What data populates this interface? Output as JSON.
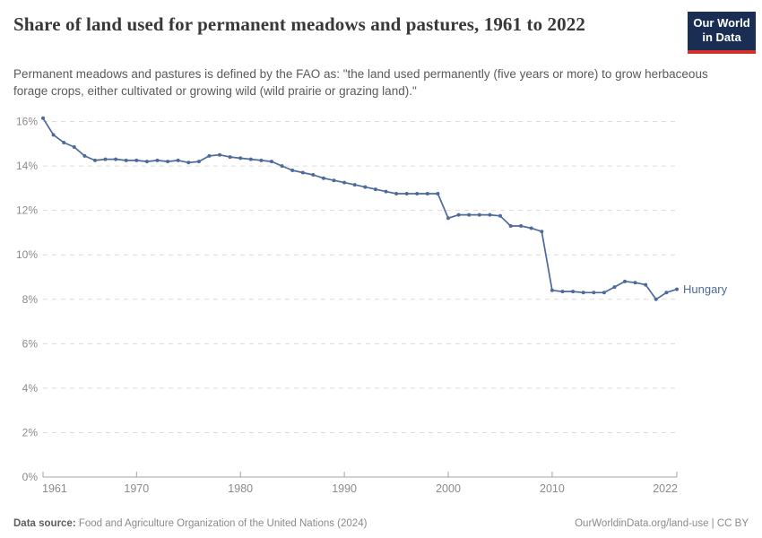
{
  "header": {
    "title": "Share of land used for permanent meadows and pastures, 1961 to 2022",
    "logo": {
      "line1": "Our World",
      "line2": "in Data",
      "bg_color": "#1a2e54",
      "accent_color": "#d3322b"
    }
  },
  "subtitle": "Permanent meadows and pastures is defined by the FAO as: \"the land used permanently (five years or more) to grow herbaceous forage crops, either cultivated or growing wild (wild prairie or grazing land).\"",
  "chart_data": {
    "type": "line",
    "title": "Share of land used for permanent meadows and pastures, 1961 to 2022",
    "x": [
      1961,
      1962,
      1963,
      1964,
      1965,
      1966,
      1967,
      1968,
      1969,
      1970,
      1971,
      1972,
      1973,
      1974,
      1975,
      1976,
      1977,
      1978,
      1979,
      1980,
      1981,
      1982,
      1983,
      1984,
      1985,
      1986,
      1987,
      1988,
      1989,
      1990,
      1991,
      1992,
      1993,
      1994,
      1995,
      1996,
      1997,
      1998,
      1999,
      2000,
      2001,
      2002,
      2003,
      2004,
      2005,
      2006,
      2007,
      2008,
      2009,
      2010,
      2011,
      2012,
      2013,
      2014,
      2015,
      2016,
      2017,
      2018,
      2019,
      2020,
      2021,
      2022
    ],
    "series": [
      {
        "name": "Hungary",
        "color": "#4c6a9c",
        "values": [
          16.15,
          15.4,
          15.05,
          14.85,
          14.45,
          14.25,
          14.3,
          14.3,
          14.25,
          14.25,
          14.2,
          14.25,
          14.2,
          14.25,
          14.15,
          14.2,
          14.45,
          14.5,
          14.4,
          14.35,
          14.3,
          14.25,
          14.2,
          14.0,
          13.8,
          13.7,
          13.6,
          13.45,
          13.35,
          13.25,
          13.15,
          13.05,
          12.95,
          12.85,
          12.75,
          12.75,
          12.75,
          12.75,
          12.75,
          11.65,
          11.8,
          11.8,
          11.8,
          11.8,
          11.75,
          11.3,
          11.3,
          11.2,
          11.05,
          8.4,
          8.35,
          8.35,
          8.3,
          8.3,
          8.3,
          8.55,
          8.8,
          8.75,
          8.65,
          8.0,
          8.3,
          8.45
        ]
      }
    ],
    "xticks": [
      1961,
      1970,
      1980,
      1990,
      2000,
      2010,
      2022
    ],
    "yticks": [
      0,
      2,
      4,
      6,
      8,
      10,
      12,
      14,
      16
    ],
    "ytick_suffix": "%",
    "ylim": [
      0,
      16
    ],
    "xlim": [
      1961,
      2022
    ],
    "grid": "horizontal-dashed",
    "legend": "end-of-line-label",
    "colors": {
      "line": "#4c6a9c",
      "grid": "#dcdcdc",
      "axis": "#a3a3a3",
      "tick_label": "#8a8a8a"
    }
  },
  "footer": {
    "datasource_label": "Data source:",
    "datasource_value": " Food and Agriculture Organization of the United Nations (2024)",
    "rights": "OurWorldinData.org/land-use | CC BY"
  }
}
